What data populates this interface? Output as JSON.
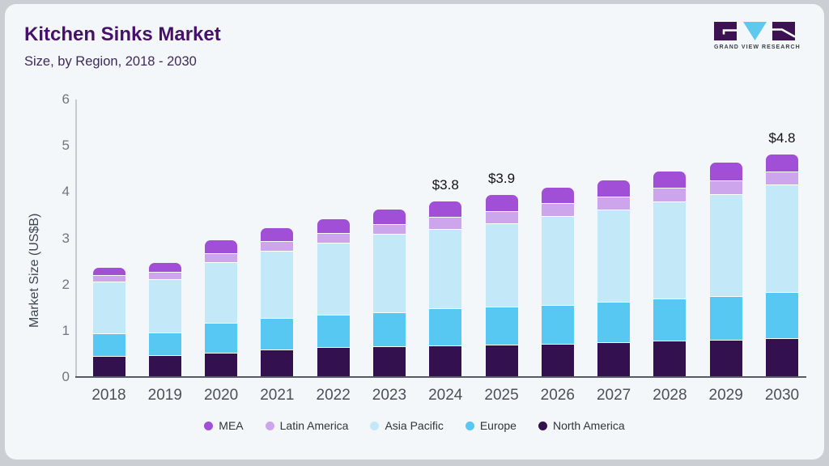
{
  "header": {
    "title": "Kitchen Sinks Market",
    "subtitle": "Size, by Region, 2018 - 2030",
    "logo": {
      "brand": "GRAND VIEW RESEARCH",
      "colors": {
        "purple": "#3c1253",
        "blue": "#5ec9ef"
      }
    }
  },
  "chart_data": {
    "type": "bar",
    "stacked": true,
    "title": "Kitchen Sinks Market Size, by Region, 2018 - 2030",
    "ylabel": "Market Size (US$B)",
    "ylim": [
      0,
      6
    ],
    "yticks": [
      0,
      1,
      2,
      3,
      4,
      5,
      6
    ],
    "grid": false,
    "legend_position": "bottom",
    "categories": [
      "2018",
      "2019",
      "2020",
      "2021",
      "2022",
      "2023",
      "2024",
      "2025",
      "2026",
      "2027",
      "2028",
      "2029",
      "2030"
    ],
    "stack_bottom_to_top": [
      "North America",
      "Europe",
      "Asia Pacific",
      "Latin America",
      "MEA"
    ],
    "legend_order": [
      "MEA",
      "Latin America",
      "Asia Pacific",
      "Europe",
      "North America"
    ],
    "series": [
      {
        "name": "MEA",
        "color": "#a04fd6",
        "values": [
          0.17,
          0.19,
          0.28,
          0.28,
          0.3,
          0.33,
          0.32,
          0.34,
          0.33,
          0.34,
          0.36,
          0.38,
          0.37
        ]
      },
      {
        "name": "Latin America",
        "color": "#cda5ec",
        "values": [
          0.13,
          0.16,
          0.19,
          0.21,
          0.21,
          0.2,
          0.26,
          0.26,
          0.28,
          0.28,
          0.29,
          0.3,
          0.28
        ]
      },
      {
        "name": "Asia Pacific",
        "color": "#c3e9f9",
        "values": [
          1.12,
          1.15,
          1.31,
          1.45,
          1.56,
          1.7,
          1.73,
          1.81,
          1.93,
          2.01,
          2.11,
          2.2,
          2.32
        ]
      },
      {
        "name": "Europe",
        "color": "#57c8f2",
        "values": [
          0.5,
          0.5,
          0.64,
          0.68,
          0.7,
          0.73,
          0.8,
          0.82,
          0.83,
          0.86,
          0.91,
          0.94,
          1.0
        ]
      },
      {
        "name": "North America",
        "color": "#32114e",
        "values": [
          0.45,
          0.47,
          0.53,
          0.6,
          0.65,
          0.67,
          0.68,
          0.7,
          0.72,
          0.76,
          0.78,
          0.81,
          0.84
        ]
      }
    ],
    "bar_labels": {
      "2024": "$3.8",
      "2025": "$3.9",
      "2030": "$4.8"
    }
  }
}
